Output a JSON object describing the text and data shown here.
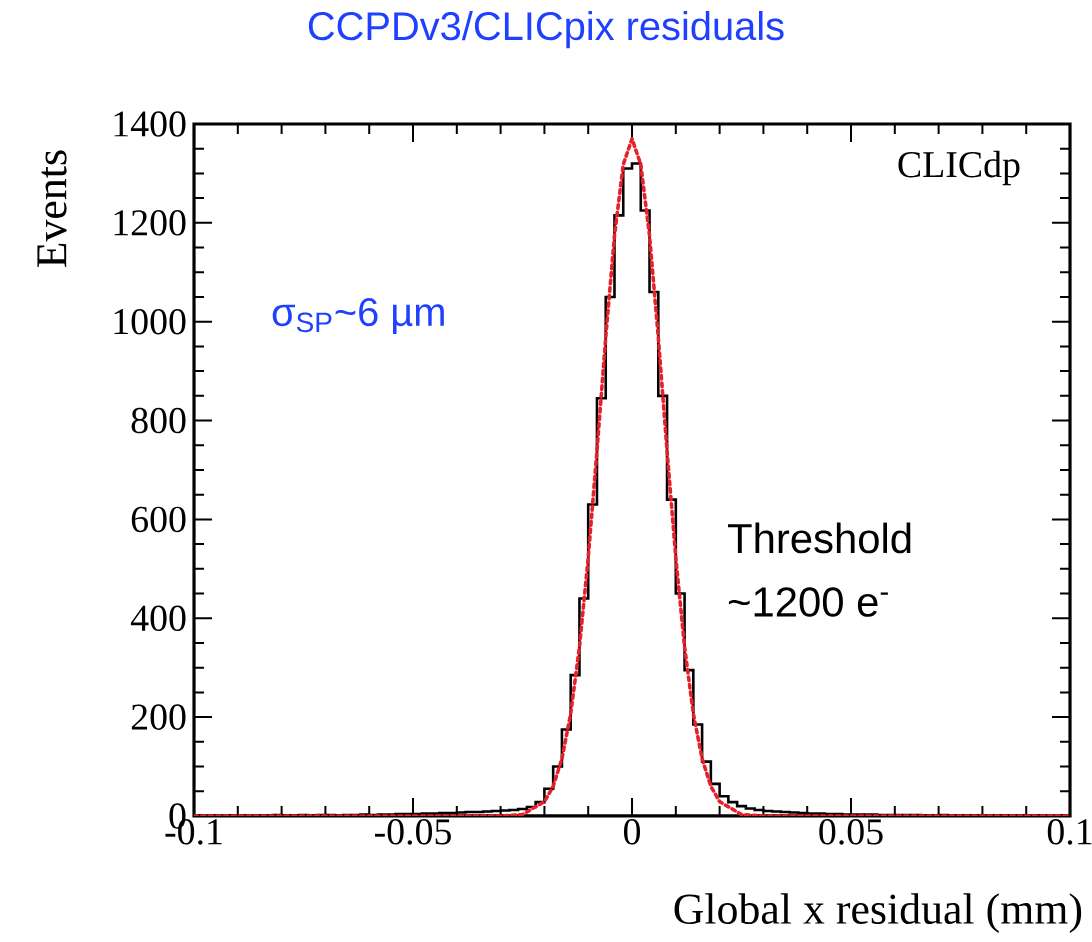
{
  "chart_data": {
    "type": "histogram",
    "title": "CCPDv3/CLICpix residuals",
    "xlabel": "Global x residual (mm)",
    "ylabel": "Events",
    "annotations": [
      "CLICdp",
      "σ$_{SP}$~6 µm",
      "Threshold",
      "~1200 e$^{-}$"
    ],
    "bins": [
      -0.1,
      -0.098,
      -0.096,
      -0.094,
      -0.092,
      -0.09,
      -0.088,
      -0.086,
      -0.084,
      -0.082,
      -0.08,
      -0.078,
      -0.076,
      -0.074,
      -0.072,
      -0.07,
      -0.068,
      -0.066,
      -0.064,
      -0.062,
      -0.06,
      -0.058,
      -0.056,
      -0.054,
      -0.052,
      -0.05,
      -0.048,
      -0.046,
      -0.044,
      -0.042,
      -0.04,
      -0.038,
      -0.036,
      -0.034,
      -0.032,
      -0.03,
      -0.028,
      -0.026,
      -0.024,
      -0.022,
      -0.02,
      -0.018,
      -0.016,
      -0.014,
      -0.012,
      -0.01,
      -0.008,
      -0.006,
      -0.004,
      -0.002,
      0,
      0.002,
      0.004,
      0.006,
      0.008,
      0.01,
      0.012,
      0.014,
      0.016,
      0.018,
      0.02,
      0.022,
      0.024,
      0.026,
      0.028,
      0.03,
      0.032,
      0.034,
      0.036,
      0.038,
      0.04,
      0.042,
      0.044,
      0.046,
      0.048,
      0.05,
      0.052,
      0.054,
      0.056,
      0.058,
      0.06,
      0.062,
      0.064,
      0.066,
      0.068,
      0.07,
      0.072,
      0.074,
      0.076,
      0.078,
      0.08,
      0.082,
      0.084,
      0.086,
      0.088,
      0.09,
      0.092,
      0.094,
      0.096,
      0.098,
      0.1
    ],
    "values": [
      1,
      0,
      1,
      0,
      1,
      1,
      0,
      1,
      1,
      2,
      1,
      1,
      2,
      1,
      2,
      2,
      1,
      2,
      2,
      3,
      2,
      3,
      3,
      4,
      4,
      4,
      5,
      5,
      6,
      6,
      7,
      8,
      8,
      9,
      10,
      11,
      12,
      14,
      18,
      28,
      55,
      100,
      175,
      285,
      440,
      630,
      845,
      1050,
      1215,
      1310,
      1320,
      1225,
      1060,
      850,
      640,
      450,
      295,
      185,
      110,
      65,
      40,
      28,
      20,
      15,
      12,
      10,
      9,
      8,
      7,
      6,
      5,
      5,
      4,
      4,
      3,
      3,
      3,
      3,
      2,
      2,
      2,
      2,
      2,
      1,
      1,
      2,
      1,
      1,
      1,
      1,
      0,
      1,
      1,
      0,
      1,
      0,
      1,
      0,
      0,
      1
    ],
    "color": "#000000",
    "series": [
      {
        "type": "line",
        "color": "#e8202a",
        "line_style": "dotted",
        "x": [
          -0.1,
          -0.05,
          -0.03,
          -0.025,
          -0.02,
          -0.018,
          -0.016,
          -0.014,
          -0.012,
          -0.01,
          -0.008,
          -0.006,
          -0.004,
          -0.002,
          0,
          0.002,
          0.004,
          0.006,
          0.008,
          0.01,
          0.012,
          0.014,
          0.016,
          0.018,
          0.02,
          0.025,
          0.03,
          0.05,
          0.1
        ],
        "values": [
          0,
          0,
          0,
          3,
          29,
          60,
          116,
          207,
          342,
          522,
          739,
          968,
          1174,
          1318,
          1370,
          1318,
          1174,
          968,
          739,
          522,
          342,
          207,
          116,
          60,
          29,
          3,
          0,
          0,
          0
        ]
      }
    ],
    "xlim": [
      -0.1,
      0.1
    ],
    "xticks": [
      -0.1,
      -0.05,
      0,
      0.05,
      0.1
    ],
    "ylim": [
      0,
      1400
    ],
    "yticks": [
      0,
      200,
      400,
      600,
      800,
      1000,
      1200,
      1400
    ]
  }
}
